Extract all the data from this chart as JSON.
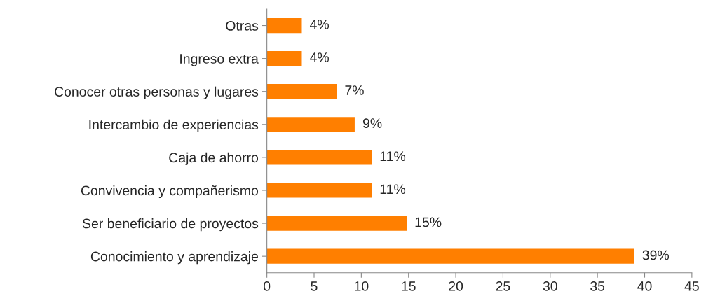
{
  "chart_data": {
    "type": "bar",
    "orientation": "horizontal",
    "categories": [
      "Otras",
      "Ingreso extra",
      "Conocer otras personas y lugares",
      "Intercambio de experiencias",
      "Caja de ahorro",
      "Convivencia y compañerismo",
      "Ser beneficiario de proyectos",
      "Conocimiento y aprendizaje"
    ],
    "values": [
      3.7,
      3.7,
      7.4,
      9.3,
      11.1,
      11.1,
      14.8,
      38.9
    ],
    "value_labels": [
      "4%",
      "4%",
      "7%",
      "9%",
      "11%",
      "11%",
      "15%",
      "39%"
    ],
    "color": "#ff7f00",
    "xlim": [
      0,
      45
    ],
    "xticks": [
      0,
      5,
      10,
      15,
      20,
      25,
      30,
      35,
      40,
      45
    ],
    "grid": false,
    "legend": false
  }
}
